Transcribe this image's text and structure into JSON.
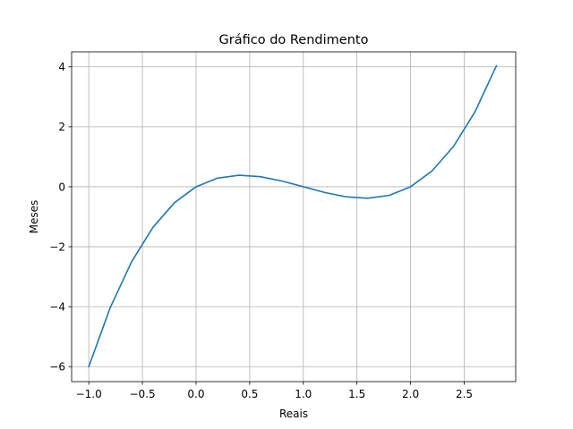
{
  "chart_data": {
    "type": "line",
    "title": "Gráfico do Rendimento",
    "xlabel": "Reais",
    "ylabel": "Meses",
    "xlim": [
      -1.16,
      2.98
    ],
    "ylim": [
      -6.5,
      4.5
    ],
    "xticks": [
      -1.0,
      -0.5,
      0.0,
      0.5,
      1.0,
      1.5,
      2.0,
      2.5
    ],
    "xtick_labels": [
      "−1.0",
      "−0.5",
      "0.0",
      "0.5",
      "1.0",
      "1.5",
      "2.0",
      "2.5"
    ],
    "yticks": [
      -6,
      -4,
      -2,
      0,
      2,
      4
    ],
    "ytick_labels": [
      "−6",
      "−4",
      "−2",
      "0",
      "2",
      "4"
    ],
    "grid": true,
    "series": [
      {
        "color": "#1f77b4",
        "x": [
          -1.0,
          -0.8,
          -0.6,
          -0.4,
          -0.2,
          0.0,
          0.2,
          0.4,
          0.6,
          0.8,
          1.0,
          1.2,
          1.4,
          1.6,
          1.8,
          2.0,
          2.2,
          2.4,
          2.6,
          2.8
        ],
        "y": [
          -6.0,
          -4.032,
          -2.496,
          -1.344,
          -0.528,
          0.0,
          0.288,
          0.384,
          0.336,
          0.192,
          0.0,
          -0.192,
          -0.336,
          -0.384,
          -0.288,
          0.0,
          0.528,
          1.344,
          2.496,
          4.032
        ]
      }
    ]
  }
}
